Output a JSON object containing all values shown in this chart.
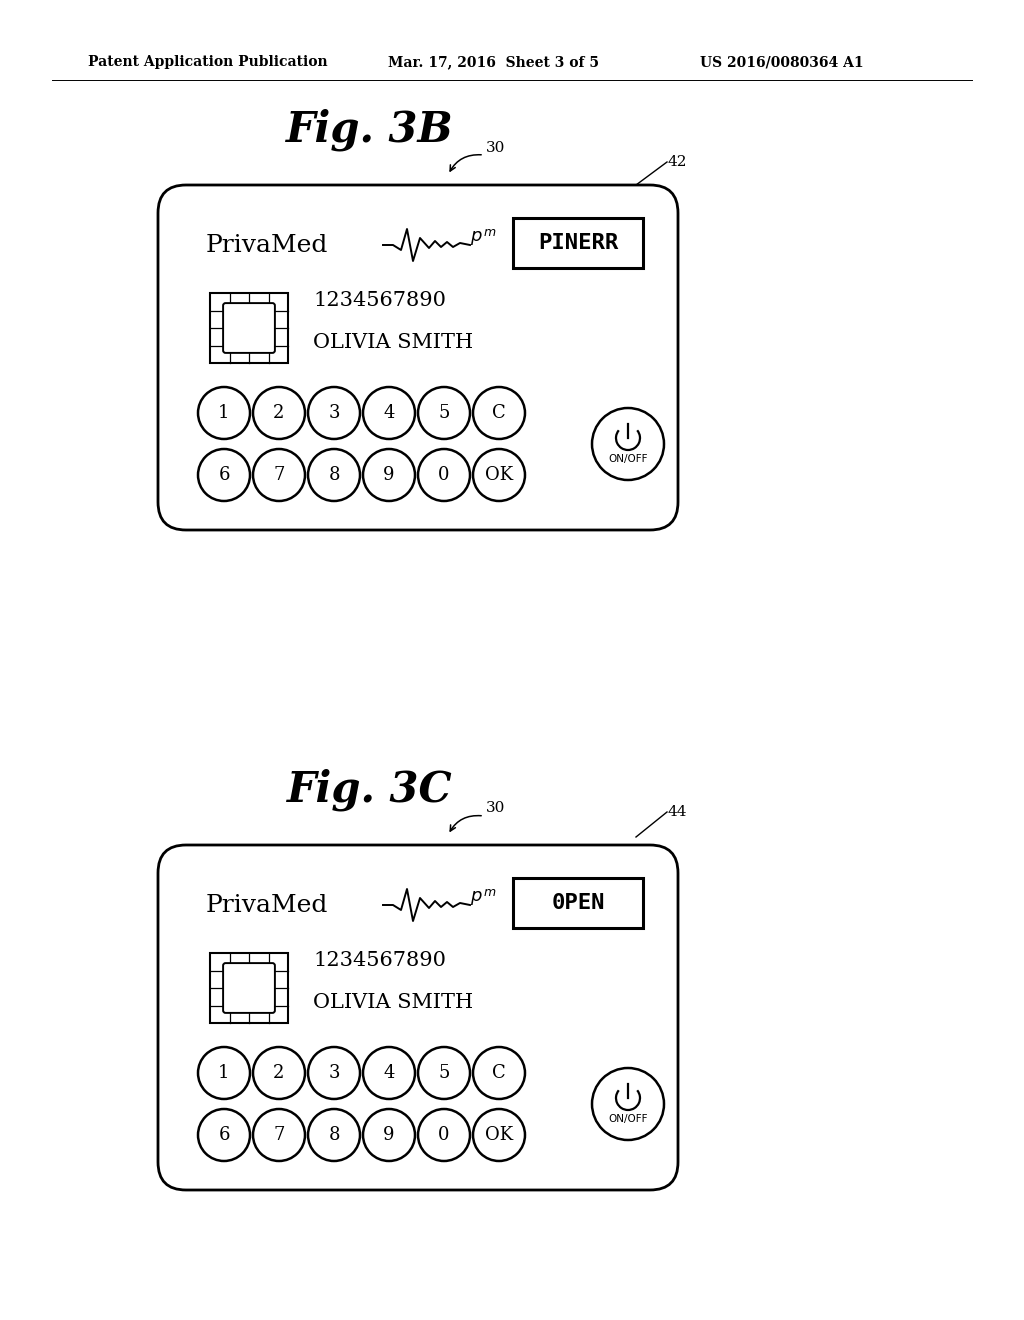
{
  "bg_color": "#ffffff",
  "header_text": "Patent Application Publication",
  "header_date": "Mar. 17, 2016  Sheet 3 of 5",
  "header_patent": "US 2016/0080364 A1",
  "fig3b_title": "Fig. 3B",
  "fig3c_title": "Fig. 3C",
  "label_30a": "30",
  "label_30b": "30",
  "label_42": "42",
  "label_44": "44",
  "brand": "PrivaMed",
  "card_number": "1234567890",
  "card_name": "OLIVIA SMITH",
  "display_3b": "PINERR",
  "display_3c": "0PEN",
  "row1_keys": [
    "1",
    "2",
    "3",
    "4",
    "5",
    "C"
  ],
  "row2_keys": [
    "6",
    "7",
    "8",
    "9",
    "0",
    "OK"
  ],
  "onoff_label": "ON/OFF",
  "card_bg": "#ffffff",
  "card_border": "#000000",
  "text_color": "#000000",
  "header_fontsize": 10,
  "fig_title_fontsize": 30,
  "brand_fontsize": 18,
  "card_num_fontsize": 15,
  "card_name_fontsize": 15,
  "display_fontsize": 16,
  "btn_fontsize": 13,
  "label_fontsize": 11
}
